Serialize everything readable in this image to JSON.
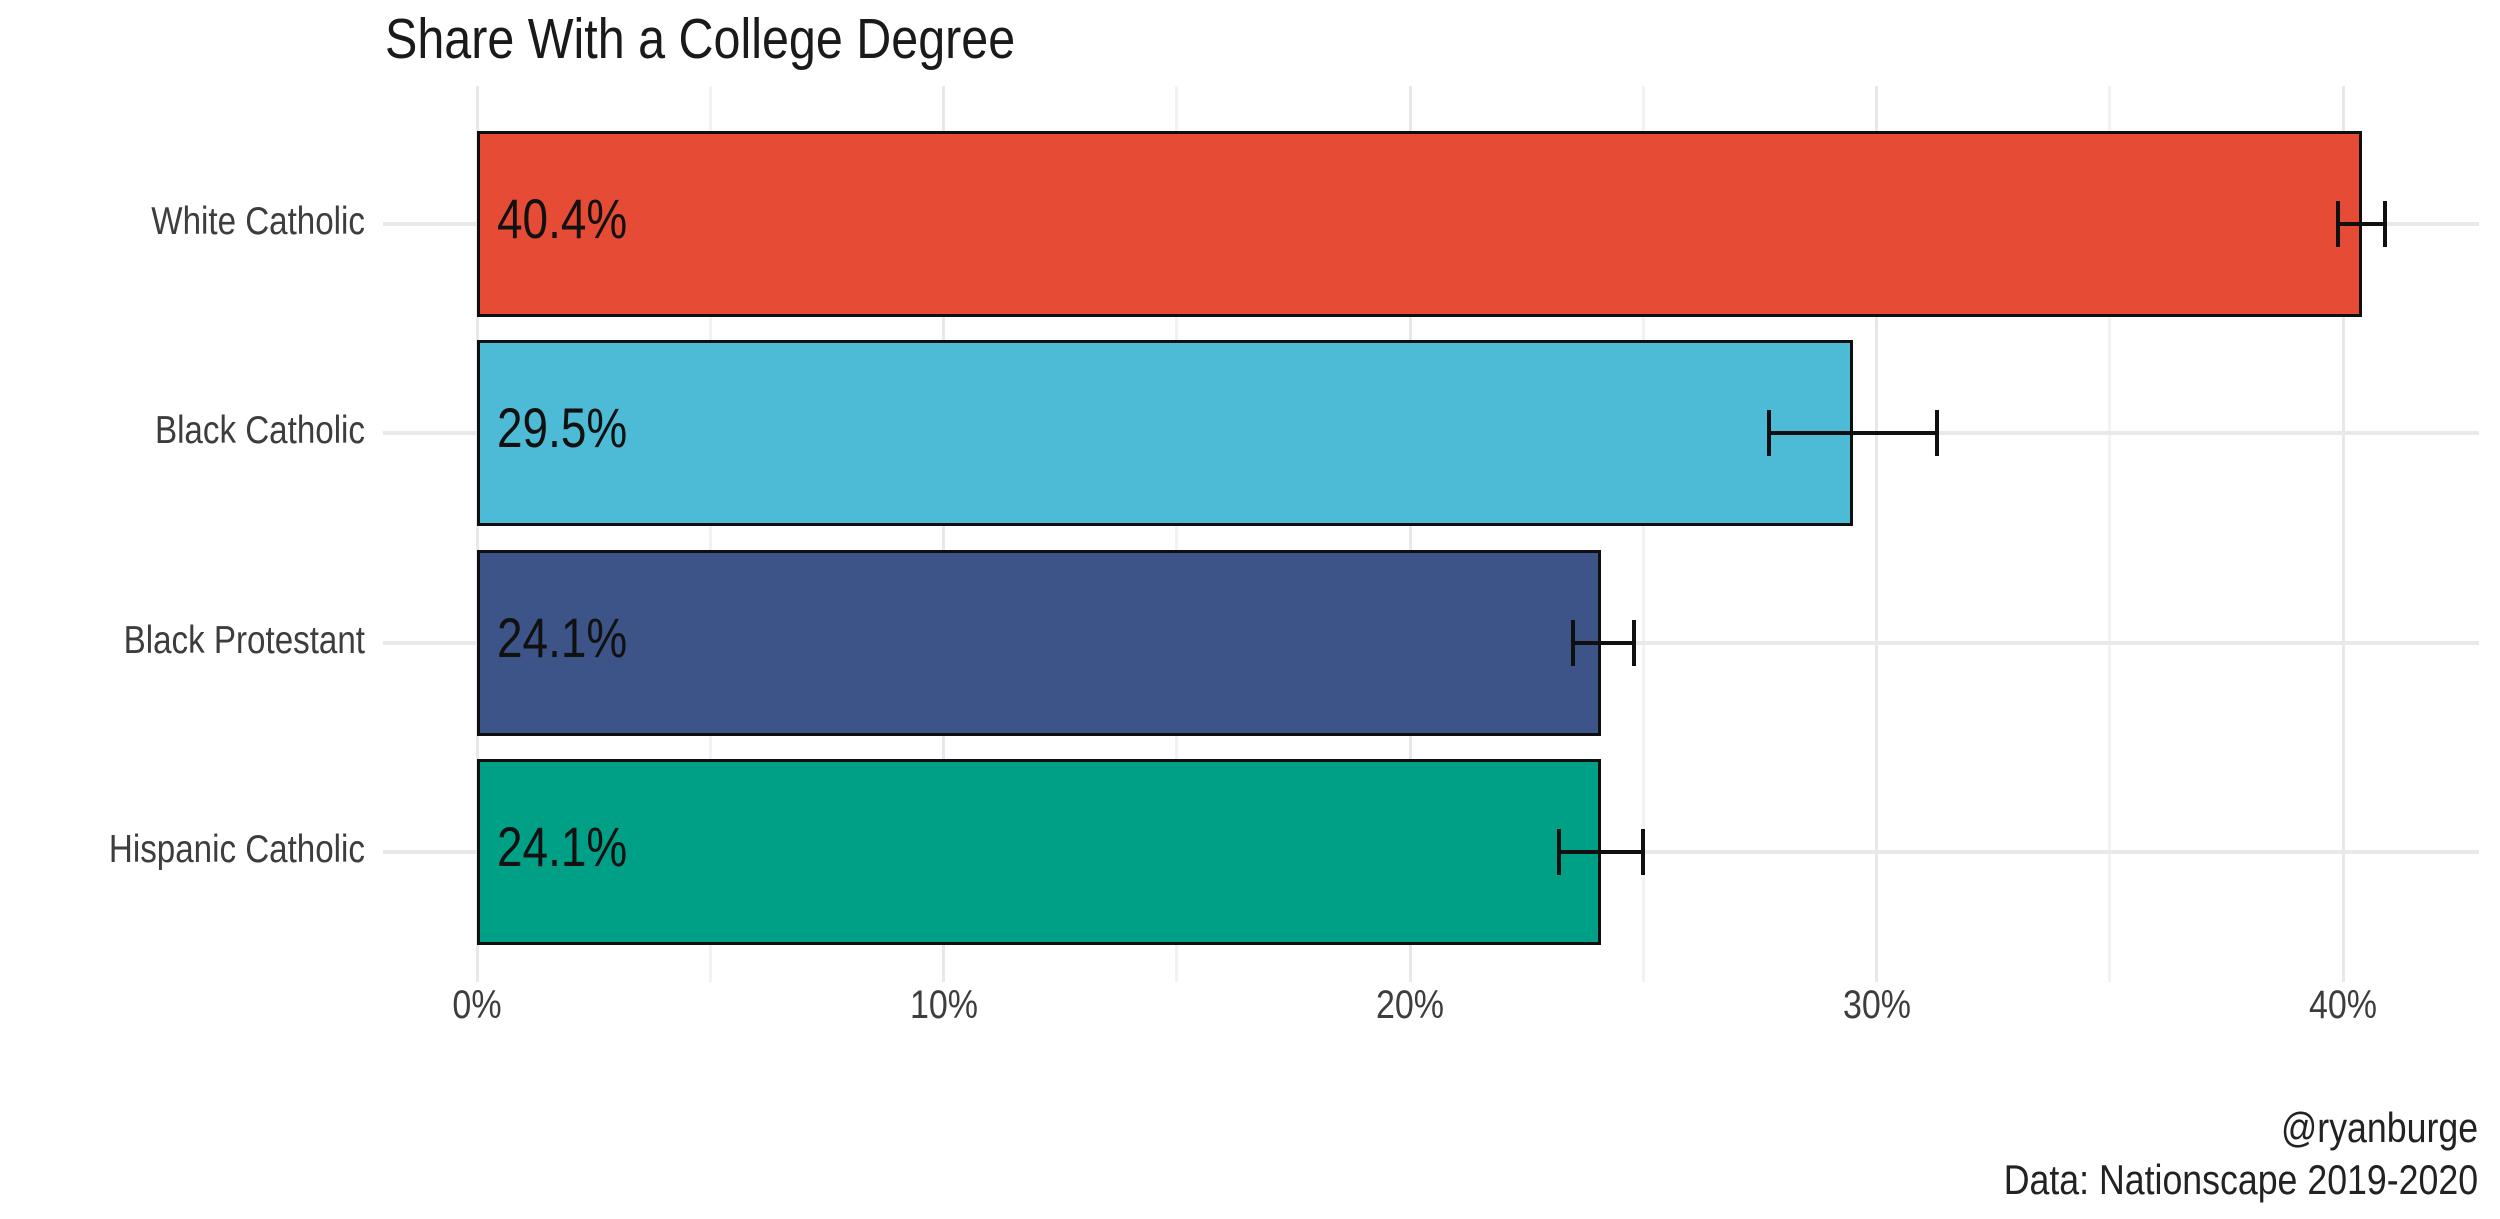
{
  "title": "Share With a College Degree",
  "caption": {
    "handle": "@ryanburge",
    "source": "Data: Nationscape 2019-2020"
  },
  "chart_data": {
    "type": "bar",
    "orientation": "horizontal",
    "title": "Share With a College Degree",
    "categories": [
      "White Catholic",
      "Black Catholic",
      "Black Protestant",
      "Hispanic Catholic"
    ],
    "values": [
      40.4,
      29.5,
      24.1,
      24.1
    ],
    "value_labels": [
      "40.4%",
      "29.5%",
      "24.1%",
      "24.1%"
    ],
    "bar_colors": [
      "#E64B35",
      "#4DBBD5",
      "#3C5488",
      "#00A087"
    ],
    "error_bars": {
      "low": [
        39.9,
        27.7,
        23.5,
        23.2
      ],
      "high": [
        40.9,
        31.3,
        24.8,
        25.0
      ]
    },
    "x_axis": {
      "tick_labels": [
        "0%",
        "10%",
        "20%",
        "30%",
        "40%"
      ],
      "tick_values": [
        0,
        10,
        20,
        30,
        40
      ],
      "minor_tick_values": [
        5,
        15,
        25,
        35
      ],
      "range": [
        0,
        43
      ]
    },
    "ylabel": "",
    "xlabel": "",
    "legend": "none",
    "grid": true,
    "annotations": [
      "@ryanburge",
      "Data: Nationscape 2019-2020"
    ]
  },
  "colors": {
    "background": "#ffffff",
    "bar_border": "#0f0f0f",
    "grid_major": "#e8e8e8",
    "grid_minor": "#f2f2f2",
    "error_bar": "#101010",
    "axis_text": "#3d3d3d",
    "title_text": "#1a1a1a"
  }
}
